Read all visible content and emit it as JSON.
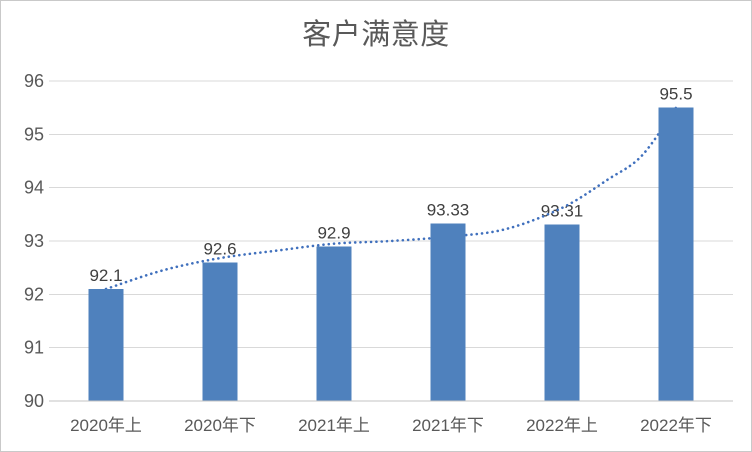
{
  "chart_data": {
    "type": "bar",
    "title": "客户满意度",
    "categories": [
      "2020年上",
      "2020年下",
      "2021年上",
      "2021年下",
      "2022年上",
      "2022年下"
    ],
    "values": [
      92.1,
      92.6,
      92.9,
      93.33,
      93.31,
      95.5
    ],
    "data_labels": [
      "92.1",
      "92.6",
      "92.9",
      "93.33",
      "93.31",
      "95.5"
    ],
    "xlabel": "",
    "ylabel": "",
    "ylim": [
      90,
      96
    ],
    "yticks": [
      90,
      91,
      92,
      93,
      94,
      95,
      96
    ],
    "grid": true,
    "legend_position": "none",
    "bar_color": "#4f81bd",
    "trendline": {
      "style": "dotted-smooth",
      "color": "#4070bd",
      "x_index": [
        0,
        0.5,
        1,
        1.5,
        2,
        2.5,
        3,
        3.5,
        4,
        4.4,
        4.7,
        5
      ],
      "values": [
        92.1,
        92.45,
        92.68,
        92.82,
        92.95,
        93.0,
        93.08,
        93.22,
        93.62,
        94.15,
        94.6,
        95.5
      ]
    },
    "colors": {
      "title": "#595959",
      "axis_label": "#595959",
      "data_label": "#404040",
      "gridline": "#d9d9d9",
      "axis_line": "#c3c3c3",
      "background": "#ffffff",
      "border": "#c9c9c9"
    }
  }
}
